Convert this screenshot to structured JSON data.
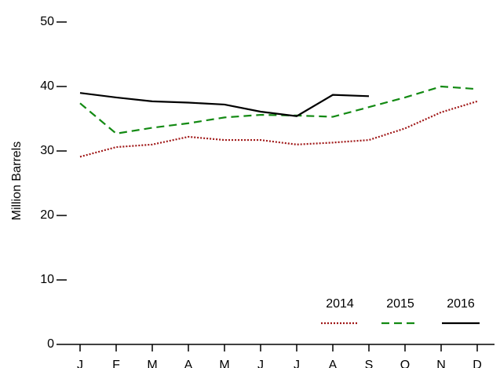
{
  "chart_data": {
    "type": "line",
    "y_label": "Million Barrels",
    "categories": [
      "J",
      "F",
      "M",
      "A",
      "M",
      "J",
      "J",
      "A",
      "S",
      "O",
      "N",
      "D"
    ],
    "series": [
      {
        "name": "2014",
        "color": "#a01818",
        "dash": "dotted",
        "values": [
          29.1,
          30.6,
          31.0,
          32.2,
          31.7,
          31.7,
          31.0,
          31.3,
          31.7,
          33.5,
          36.0,
          37.7
        ]
      },
      {
        "name": "2015",
        "color": "#138a13",
        "dash": "dashed",
        "values": [
          37.4,
          32.7,
          33.6,
          34.3,
          35.2,
          35.6,
          35.5,
          35.3,
          36.8,
          38.3,
          40.0,
          39.6
        ]
      },
      {
        "name": "2016",
        "color": "#000000",
        "dash": "solid",
        "values": [
          39.0,
          38.3,
          37.7,
          37.5,
          37.2,
          36.1,
          35.4,
          38.7,
          38.5,
          null,
          null,
          null
        ]
      }
    ],
    "ylim": [
      0,
      50
    ],
    "yticks": [
      0,
      10,
      20,
      30,
      40,
      50
    ],
    "legend": "lower right"
  }
}
